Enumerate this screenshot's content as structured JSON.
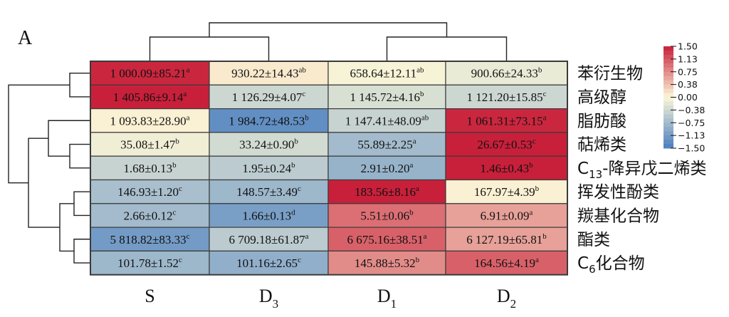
{
  "panel_label": "A",
  "colors": {
    "high": "#c8203a",
    "mid": "#fcf7d8",
    "low": "#4a7fc0",
    "grid": "#3a3a3a",
    "dendrogram": "#222222"
  },
  "chart_data": {
    "type": "heatmap",
    "columns": [
      {
        "base": "S",
        "sub": ""
      },
      {
        "base": "D",
        "sub": "3"
      },
      {
        "base": "D",
        "sub": "1"
      },
      {
        "base": "D",
        "sub": "2"
      }
    ],
    "rows": [
      {
        "base": "苯衍生物",
        "sub": "",
        "tail": ""
      },
      {
        "base": "高级醇",
        "sub": "",
        "tail": ""
      },
      {
        "base": "脂肪酸",
        "sub": "",
        "tail": ""
      },
      {
        "base": "萜烯类",
        "sub": "",
        "tail": ""
      },
      {
        "base": "C",
        "sub": "13",
        "tail": "-降异戊二烯类"
      },
      {
        "base": "挥发性酚类",
        "sub": "",
        "tail": ""
      },
      {
        "base": "羰基化合物",
        "sub": "",
        "tail": ""
      },
      {
        "base": "酯类",
        "sub": "",
        "tail": ""
      },
      {
        "base": "C",
        "sub": "6",
        "tail": "化合物"
      }
    ],
    "cells": [
      [
        {
          "text": "1 000.09±85.21",
          "sup": "a",
          "z": 1.45
        },
        {
          "text": "930.22±14.43",
          "sup": "ab",
          "z": 0.1
        },
        {
          "text": "658.64±12.11",
          "sup": "ab",
          "z": -0.05
        },
        {
          "text": "900.66±24.33",
          "sup": "b",
          "z": -0.15
        }
      ],
      [
        {
          "text": "1 405.86±9.14",
          "sup": "a",
          "z": 1.5
        },
        {
          "text": "1 126.29±4.07",
          "sup": "c",
          "z": -0.4
        },
        {
          "text": "1 145.72±4.16",
          "sup": "b",
          "z": -0.3
        },
        {
          "text": "1 121.20±15.85",
          "sup": "c",
          "z": -0.4
        }
      ],
      [
        {
          "text": "1 093.83±28.90",
          "sup": "a",
          "z": 0.05
        },
        {
          "text": "1 984.72±48.53",
          "sup": "b",
          "z": -1.3
        },
        {
          "text": "1 147.41±48.09",
          "sup": "ab",
          "z": -0.45
        },
        {
          "text": "1 061.31±73.15",
          "sup": "a",
          "z": 1.45
        }
      ],
      [
        {
          "text": "35.08±1.47",
          "sup": "b",
          "z": -0.1
        },
        {
          "text": "33.24±0.90",
          "sup": "b",
          "z": -0.35
        },
        {
          "text": "55.89±2.25",
          "sup": "a",
          "z": -0.75
        },
        {
          "text": "26.67±0.53",
          "sup": "c",
          "z": 1.5
        }
      ],
      [
        {
          "text": "1.68±0.13",
          "sup": "b",
          "z": -0.45
        },
        {
          "text": "1.95±0.24",
          "sup": "b",
          "z": -0.55
        },
        {
          "text": "2.91±0.20",
          "sup": "a",
          "z": -0.85
        },
        {
          "text": "1.46±0.43",
          "sup": "b",
          "z": 1.5
        }
      ],
      [
        {
          "text": "146.93±1.20",
          "sup": "c",
          "z": -0.7
        },
        {
          "text": "148.57±3.49",
          "sup": "c",
          "z": -0.8
        },
        {
          "text": "183.56±8.16",
          "sup": "a",
          "z": 1.5
        },
        {
          "text": "167.97±4.39",
          "sup": "b",
          "z": 0.05
        }
      ],
      [
        {
          "text": "2.66±0.12",
          "sup": "c",
          "z": -0.75
        },
        {
          "text": "1.66±0.13",
          "sup": "d",
          "z": -1.1
        },
        {
          "text": "5.51±0.06",
          "sup": "b",
          "z": 0.95
        },
        {
          "text": "6.91±0.09",
          "sup": "a",
          "z": 0.6
        }
      ],
      [
        {
          "text": "5 818.82±83.33",
          "sup": "c",
          "z": -1.15
        },
        {
          "text": "6 709.18±61.87",
          "sup": "a",
          "z": -0.55
        },
        {
          "text": "6 675.16±38.51",
          "sup": "a",
          "z": 1.05
        },
        {
          "text": "6 127.19±65.81",
          "sup": "b",
          "z": 0.6
        }
      ],
      [
        {
          "text": "101.78±1.52",
          "sup": "c",
          "z": -0.8
        },
        {
          "text": "101.16±2.65",
          "sup": "c",
          "z": -0.9
        },
        {
          "text": "145.88±5.32",
          "sup": "b",
          "z": 0.75
        },
        {
          "text": "164.56±4.19",
          "sup": "a",
          "z": 1.05
        }
      ]
    ],
    "legend": {
      "ticks": [
        "1.50",
        "1.13",
        "0.75",
        "0.38",
        "0.00",
        "−0.38",
        "−0.75",
        "−1.13",
        "−1.50"
      ],
      "range": [
        -1.5,
        1.5
      ]
    }
  }
}
